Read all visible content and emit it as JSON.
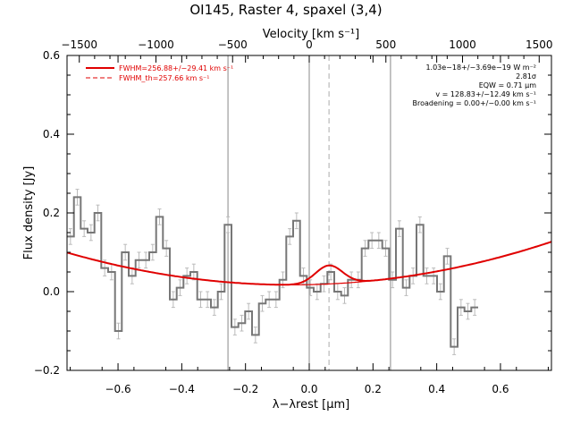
{
  "chart_data": {
    "type": "line",
    "title": "OI145, Raster 4, spaxel (3,4)",
    "xlabel": "λ−λrest [μm]",
    "ylabel": "Flux density [Jy]",
    "top_xlabel": "Velocity [km s⁻¹]",
    "xlim": [
      -0.76,
      0.76
    ],
    "ylim": [
      -0.2,
      0.6
    ],
    "velocity_lim": [
      -1580,
      1580
    ],
    "xticks": [
      -0.6,
      -0.4,
      -0.2,
      0.0,
      0.2,
      0.4,
      0.6
    ],
    "xtick_labels": [
      "−0.6",
      "−0.4",
      "−0.2",
      "0.0",
      "0.2",
      "0.4",
      "0.6"
    ],
    "yticks": [
      -0.2,
      0.0,
      0.2,
      0.4,
      0.6
    ],
    "ytick_labels": [
      "−0.2",
      "0.0",
      "0.2",
      "0.4",
      "0.6"
    ],
    "vticks": [
      -1500,
      -1000,
      -500,
      0,
      500,
      1000,
      1500
    ],
    "vtick_labels": [
      "−1500",
      "−1000",
      "−500",
      "0",
      "500",
      "1000",
      "1500"
    ],
    "vertical_lines": [
      {
        "x": -0.255,
        "style": "solid",
        "color": "#888888"
      },
      {
        "x": 0.0,
        "style": "solid",
        "color": "#888888"
      },
      {
        "x": 0.062,
        "style": "dashed",
        "color": "#aaaaaa"
      },
      {
        "x": 0.255,
        "style": "solid",
        "color": "#888888"
      }
    ],
    "legend": {
      "placement": "top-left",
      "entries": [
        {
          "label": "FWHM=256.88+/−29.41 km s⁻¹",
          "style": "solid",
          "color": "#e00000"
        },
        {
          "label": "FWHM_th=257.66 km s⁻¹",
          "style": "dashed",
          "color": "#e00000"
        }
      ]
    },
    "annotations": [
      "1.03e−18+/−3.69e−19 W m⁻²",
      "2.81σ",
      "EQW = 0.71 μm",
      "v = 128.83+/−12.49 km s⁻¹",
      "Broadening = 0.00+/−0.00 km s⁻¹"
    ],
    "spectrum": {
      "color": "#777777",
      "error_color": "#bbbbbb",
      "x_start": -0.76,
      "bin_width": 0.0215,
      "values": [
        0.14,
        0.24,
        0.16,
        0.15,
        0.2,
        0.06,
        0.05,
        -0.1,
        0.1,
        0.04,
        0.08,
        0.08,
        0.1,
        0.19,
        0.11,
        -0.02,
        0.01,
        0.04,
        0.05,
        -0.02,
        -0.02,
        -0.04,
        0.0,
        0.17,
        -0.09,
        -0.08,
        -0.05,
        -0.11,
        -0.03,
        -0.02,
        -0.02,
        0.03,
        0.14,
        0.18,
        0.04,
        0.01,
        0.0,
        0.02,
        0.05,
        0.0,
        -0.01,
        0.03,
        0.03,
        0.11,
        0.13,
        0.13,
        0.11,
        0.03,
        0.16,
        0.01,
        0.04,
        0.17,
        0.04,
        0.04,
        0.0,
        0.09,
        -0.14,
        -0.04,
        -0.05,
        -0.04
      ],
      "errors": [
        0.02,
        0.02,
        0.02,
        0.02,
        0.02,
        0.02,
        0.02,
        0.02,
        0.02,
        0.02,
        0.02,
        0.02,
        0.02,
        0.02,
        0.02,
        0.02,
        0.02,
        0.02,
        0.02,
        0.02,
        0.02,
        0.02,
        0.02,
        0.02,
        0.02,
        0.02,
        0.02,
        0.02,
        0.02,
        0.02,
        0.02,
        0.02,
        0.02,
        0.02,
        0.02,
        0.02,
        0.02,
        0.02,
        0.02,
        0.02,
        0.02,
        0.02,
        0.02,
        0.02,
        0.02,
        0.02,
        0.02,
        0.02,
        0.02,
        0.02,
        0.02,
        0.02,
        0.02,
        0.02,
        0.02,
        0.02,
        0.02,
        0.02,
        0.02,
        0.02
      ]
    },
    "fit": {
      "color": "#e00000",
      "continuum": {
        "type": "quadratic",
        "coefficients": [
          0.0178,
          0.018,
          0.165
        ]
      },
      "line": {
        "type": "gaussian",
        "center": 0.062,
        "amplitude": 0.047,
        "sigma": 0.0425
      }
    }
  }
}
